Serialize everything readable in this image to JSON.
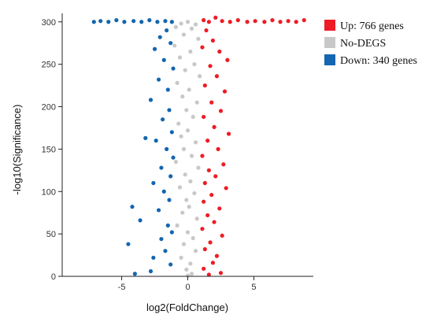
{
  "chart_data": {
    "type": "scatter",
    "title": "",
    "xlabel": "log2(FoldChange)",
    "ylabel": "-log10(Significance)",
    "xlim": [
      -9.5,
      9.5
    ],
    "ylim": [
      0,
      310
    ],
    "x_ticks": [
      -5,
      0,
      5
    ],
    "y_ticks": [
      0,
      50,
      100,
      150,
      200,
      250,
      300
    ],
    "grid": false,
    "legend_position": "right",
    "series": [
      {
        "name": "Up: 766 genes",
        "color": "#ee1c25"
      },
      {
        "name": "No-DEGS",
        "color": "#c8c8c8"
      },
      {
        "name": "Down: 340 genes",
        "color": "#1466b0"
      }
    ],
    "cap_value": 300,
    "points": {
      "up": [
        [
          1.2,
          302
        ],
        [
          1.6,
          300
        ],
        [
          2.1,
          305
        ],
        [
          2.6,
          301
        ],
        [
          3.2,
          300
        ],
        [
          3.8,
          302
        ],
        [
          4.5,
          300
        ],
        [
          5.1,
          301
        ],
        [
          5.8,
          300
        ],
        [
          6.4,
          302
        ],
        [
          7.0,
          300
        ],
        [
          7.6,
          301
        ],
        [
          8.2,
          300
        ],
        [
          8.8,
          302
        ],
        [
          1.4,
          290
        ],
        [
          1.9,
          278
        ],
        [
          1.1,
          270
        ],
        [
          2.4,
          265
        ],
        [
          3.0,
          255
        ],
        [
          1.7,
          248
        ],
        [
          2.2,
          236
        ],
        [
          1.3,
          225
        ],
        [
          2.8,
          218
        ],
        [
          1.8,
          205
        ],
        [
          2.5,
          195
        ],
        [
          1.2,
          188
        ],
        [
          2.0,
          176
        ],
        [
          3.1,
          168
        ],
        [
          1.5,
          160
        ],
        [
          2.3,
          150
        ],
        [
          1.1,
          142
        ],
        [
          2.7,
          132
        ],
        [
          1.6,
          125
        ],
        [
          2.1,
          118
        ],
        [
          1.3,
          110
        ],
        [
          2.9,
          104
        ],
        [
          1.8,
          96
        ],
        [
          1.2,
          88
        ],
        [
          2.4,
          80
        ],
        [
          1.5,
          72
        ],
        [
          2.0,
          64
        ],
        [
          1.1,
          56
        ],
        [
          2.6,
          48
        ],
        [
          1.7,
          40
        ],
        [
          1.3,
          32
        ],
        [
          2.2,
          24
        ],
        [
          1.9,
          16
        ],
        [
          1.2,
          9
        ],
        [
          2.5,
          4
        ],
        [
          1.6,
          2
        ]
      ],
      "none": [
        [
          0.0,
          300
        ],
        [
          -0.5,
          298
        ],
        [
          0.6,
          297
        ],
        [
          -0.9,
          294
        ],
        [
          0.3,
          292
        ],
        [
          -0.3,
          285
        ],
        [
          0.8,
          280
        ],
        [
          -1.0,
          272
        ],
        [
          0.2,
          265
        ],
        [
          -0.6,
          258
        ],
        [
          0.5,
          250
        ],
        [
          -0.2,
          243
        ],
        [
          0.9,
          236
        ],
        [
          -0.8,
          228
        ],
        [
          0.1,
          220
        ],
        [
          -0.4,
          212
        ],
        [
          0.7,
          205
        ],
        [
          -0.1,
          196
        ],
        [
          0.4,
          188
        ],
        [
          -0.7,
          180
        ],
        [
          0.0,
          172
        ],
        [
          -0.5,
          165
        ],
        [
          0.6,
          158
        ],
        [
          -0.3,
          150
        ],
        [
          0.3,
          142
        ],
        [
          -0.9,
          135
        ],
        [
          0.8,
          128
        ],
        [
          -0.2,
          120
        ],
        [
          0.2,
          112
        ],
        [
          -0.6,
          105
        ],
        [
          0.5,
          98
        ],
        [
          -0.1,
          90
        ],
        [
          0.1,
          82
        ],
        [
          -0.4,
          75
        ],
        [
          0.7,
          68
        ],
        [
          -0.8,
          60
        ],
        [
          0.0,
          52
        ],
        [
          0.4,
          45
        ],
        [
          -0.3,
          38
        ],
        [
          0.6,
          30
        ],
        [
          -0.5,
          22
        ],
        [
          0.2,
          15
        ],
        [
          -0.1,
          8
        ],
        [
          0.3,
          3
        ],
        [
          0.0,
          1
        ]
      ],
      "down": [
        [
          -1.2,
          300
        ],
        [
          -1.7,
          301
        ],
        [
          -2.3,
          300
        ],
        [
          -2.9,
          302
        ],
        [
          -3.5,
          300
        ],
        [
          -4.1,
          301
        ],
        [
          -4.8,
          300
        ],
        [
          -5.4,
          302
        ],
        [
          -6.0,
          300
        ],
        [
          -6.6,
          301
        ],
        [
          -7.1,
          300
        ],
        [
          -1.6,
          290
        ],
        [
          -2.1,
          282
        ],
        [
          -1.3,
          275
        ],
        [
          -2.5,
          268
        ],
        [
          -1.8,
          255
        ],
        [
          -1.1,
          245
        ],
        [
          -2.2,
          232
        ],
        [
          -1.5,
          220
        ],
        [
          -2.8,
          208
        ],
        [
          -1.4,
          196
        ],
        [
          -1.9,
          185
        ],
        [
          -3.2,
          163
        ],
        [
          -1.2,
          170
        ],
        [
          -2.4,
          160
        ],
        [
          -1.6,
          150
        ],
        [
          -1.1,
          140
        ],
        [
          -2.0,
          128
        ],
        [
          -1.3,
          118
        ],
        [
          -2.6,
          110
        ],
        [
          -1.8,
          100
        ],
        [
          -4.2,
          82
        ],
        [
          -1.4,
          90
        ],
        [
          -2.2,
          78
        ],
        [
          -3.6,
          66
        ],
        [
          -1.5,
          60
        ],
        [
          -1.2,
          52
        ],
        [
          -2.0,
          44
        ],
        [
          -4.5,
          38
        ],
        [
          -1.7,
          30
        ],
        [
          -2.6,
          22
        ],
        [
          -1.3,
          14
        ],
        [
          -2.8,
          6
        ],
        [
          -4.0,
          3
        ]
      ]
    }
  }
}
